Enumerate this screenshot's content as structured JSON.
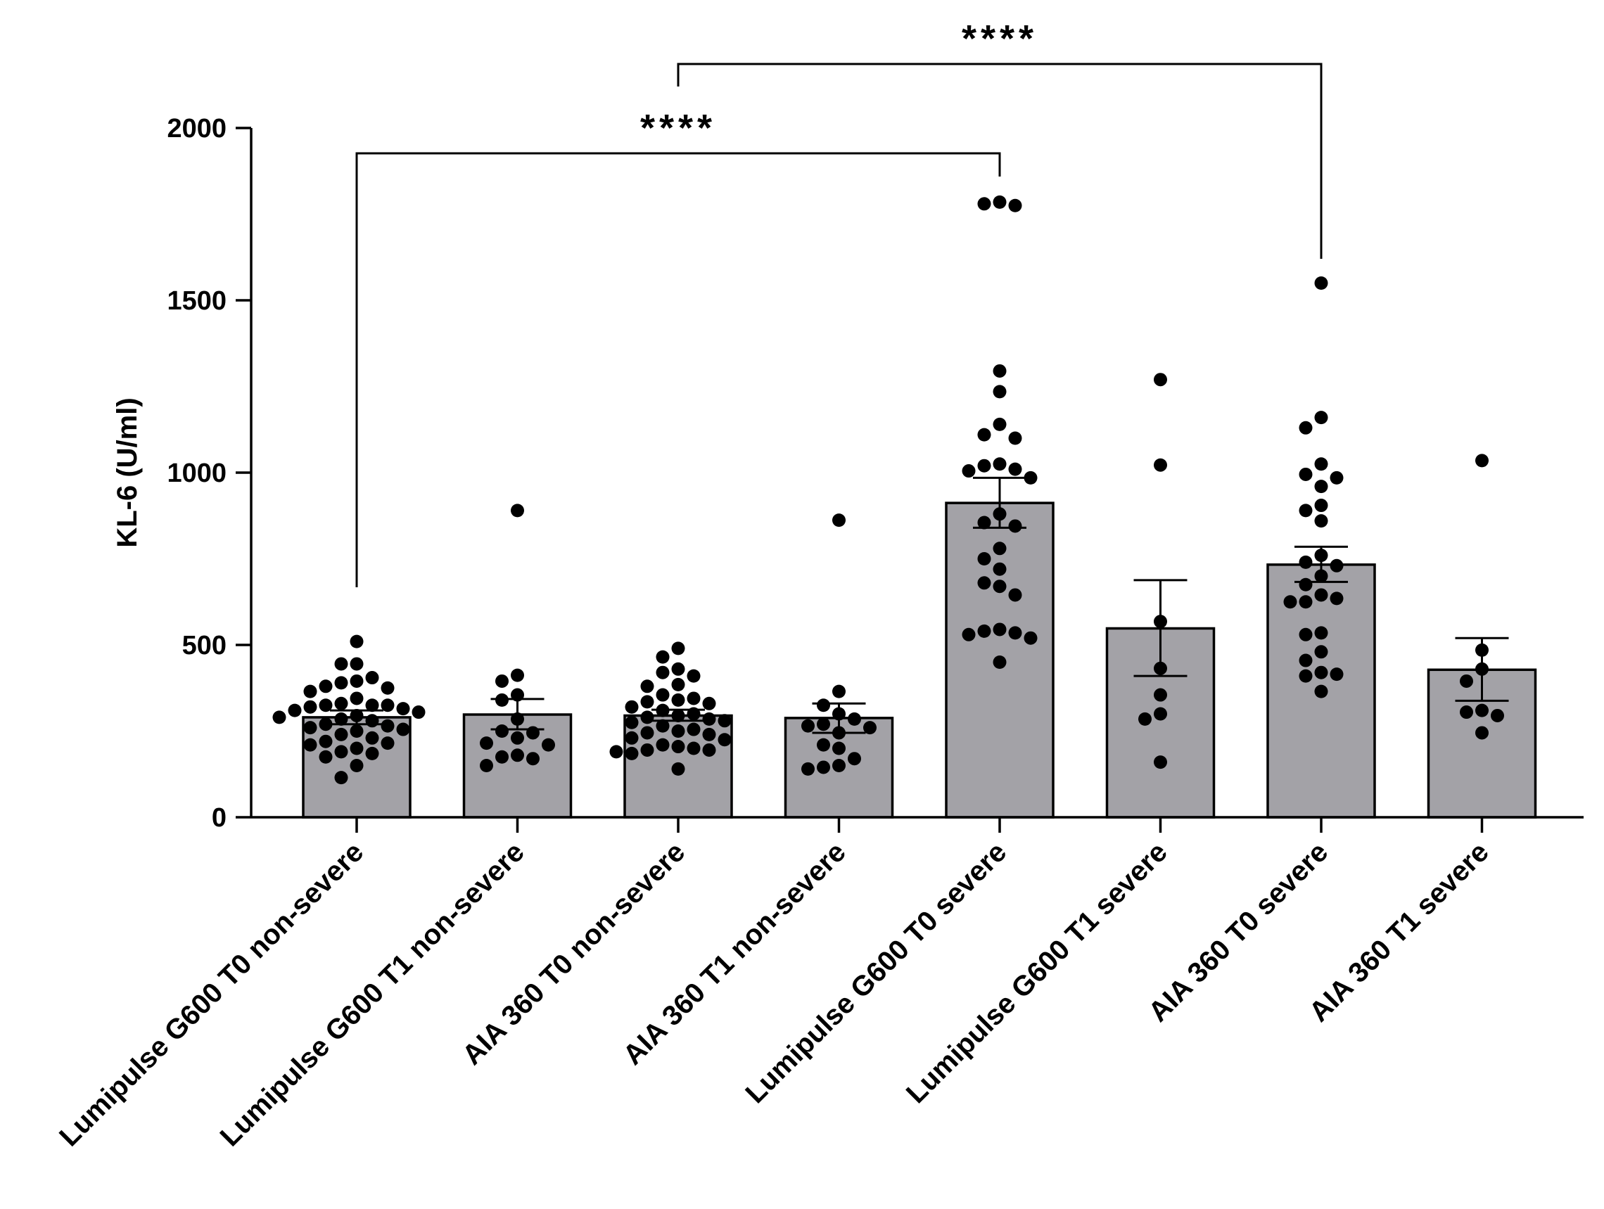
{
  "chart_data": {
    "type": "bar",
    "title": "",
    "xlabel": "",
    "ylabel": "KL-6 (U/ml)",
    "ylim": [
      0,
      2000
    ],
    "yticks": [
      0,
      500,
      1000,
      1500,
      2000
    ],
    "grid": false,
    "legend": "none",
    "categories": [
      "Lumipulse G600 T0 non-severe",
      "Lumipulse G600 T1 non-severe",
      "AIA 360 T0 non-severe",
      "AIA 360 T1 non-severe",
      "Lumipulse G600 T0 severe",
      "Lumipulse G600 T1 severe",
      "AIA 360 T0 severe",
      "AIA 360 T1 severe"
    ],
    "values": [
      290,
      298,
      295,
      288,
      912,
      548,
      733,
      428
    ],
    "error_low": [
      270,
      255,
      280,
      245,
      840,
      410,
      683,
      338
    ],
    "error_high": [
      310,
      343,
      312,
      330,
      985,
      688,
      785,
      520
    ],
    "points": [
      [
        510,
        445,
        445,
        405,
        395,
        390,
        380,
        375,
        365,
        345,
        330,
        325,
        325,
        325,
        320,
        315,
        310,
        305,
        295,
        290,
        285,
        280,
        270,
        265,
        260,
        255,
        250,
        240,
        230,
        220,
        215,
        210,
        200,
        190,
        185,
        175,
        150,
        115
      ],
      [
        890,
        412,
        395,
        355,
        340,
        285,
        250,
        245,
        230,
        215,
        210,
        180,
        175,
        170,
        150
      ],
      [
        490,
        465,
        430,
        420,
        410,
        385,
        380,
        355,
        345,
        340,
        335,
        330,
        320,
        310,
        300,
        295,
        290,
        285,
        280,
        275,
        265,
        255,
        250,
        245,
        240,
        230,
        225,
        210,
        205,
        200,
        195,
        195,
        190,
        185,
        140
      ],
      [
        862,
        365,
        325,
        300,
        285,
        270,
        265,
        260,
        245,
        210,
        200,
        170,
        150,
        145,
        140
      ],
      [
        1785,
        1780,
        1775,
        1295,
        1235,
        1140,
        1110,
        1100,
        1025,
        1020,
        1010,
        1005,
        985,
        880,
        855,
        845,
        780,
        750,
        720,
        680,
        670,
        645,
        545,
        540,
        535,
        530,
        520,
        450
      ],
      [
        1270,
        1022,
        568,
        432,
        355,
        300,
        285,
        160
      ],
      [
        1550,
        1160,
        1130,
        1025,
        995,
        985,
        960,
        905,
        890,
        860,
        760,
        740,
        730,
        700,
        675,
        645,
        635,
        625,
        625,
        535,
        530,
        480,
        455,
        420,
        415,
        410,
        365
      ],
      [
        1035,
        485,
        430,
        395,
        310,
        305,
        295,
        245
      ]
    ],
    "comparisons": [
      {
        "from": "Lumipulse G600 T0 non-severe",
        "to": "Lumipulse G600 T0 severe",
        "label": "****"
      },
      {
        "from": "AIA 360 T0 non-severe",
        "to": "AIA 360 T0 severe",
        "label": "****"
      }
    ],
    "colors": {
      "bar_fill": "#a3a2a7",
      "stroke": "#000000",
      "point": "#000000"
    }
  }
}
